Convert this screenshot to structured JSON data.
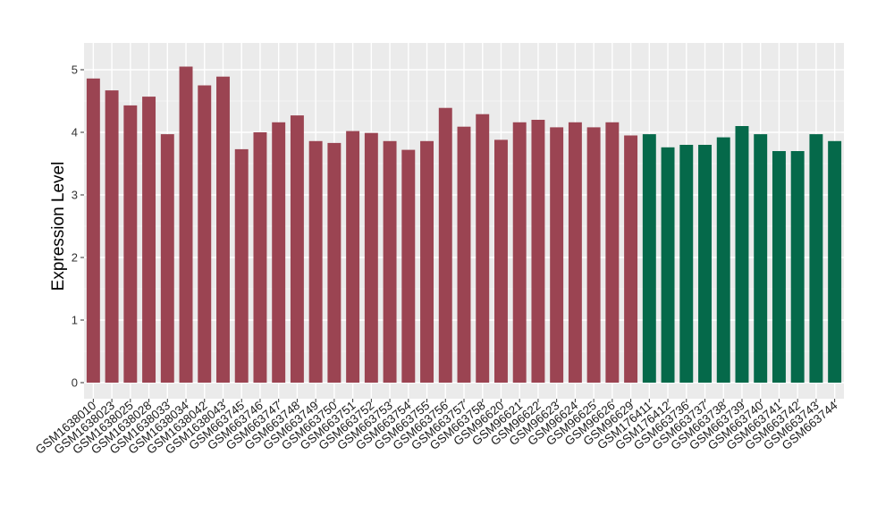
{
  "chart_data": {
    "type": "bar",
    "ylabel": "Expression Level",
    "xlabel": "",
    "ylim": [
      0,
      5.2
    ],
    "yticks": [
      0,
      1,
      2,
      3,
      4,
      5
    ],
    "grid": true,
    "background": "#ebebeb",
    "colors": {
      "group1": "#9b4452",
      "group2": "#05694a"
    },
    "categories": [
      "GSM1638010",
      "GSM1638023",
      "GSM1638025",
      "GSM1638028",
      "GSM1638033",
      "GSM1638034",
      "GSM1638042",
      "GSM1638043",
      "GSM663745",
      "GSM663746",
      "GSM663747",
      "GSM663748",
      "GSM663749",
      "GSM663750",
      "GSM663751",
      "GSM663752",
      "GSM663753",
      "GSM663754",
      "GSM663755",
      "GSM663756",
      "GSM663757",
      "GSM663758",
      "GSM96620",
      "GSM96621",
      "GSM96622",
      "GSM96623",
      "GSM96624",
      "GSM96625",
      "GSM96626",
      "GSM96629",
      "GSM176411",
      "GSM176412",
      "GSM663736",
      "GSM663737",
      "GSM663738",
      "GSM663739",
      "GSM663740",
      "GSM663741",
      "GSM663742",
      "GSM663743",
      "GSM663744"
    ],
    "values": [
      4.86,
      4.67,
      4.43,
      4.57,
      3.97,
      5.05,
      4.75,
      4.89,
      3.73,
      4.0,
      4.16,
      4.27,
      3.86,
      3.83,
      4.02,
      3.99,
      3.86,
      3.72,
      3.86,
      4.39,
      4.09,
      4.29,
      3.88,
      4.16,
      4.2,
      4.08,
      4.16,
      4.08,
      4.16,
      3.95,
      3.97,
      3.76,
      3.8,
      3.8,
      3.92,
      4.1,
      3.97,
      3.7,
      3.7,
      3.97,
      3.86
    ],
    "groups": [
      "group1",
      "group1",
      "group1",
      "group1",
      "group1",
      "group1",
      "group1",
      "group1",
      "group1",
      "group1",
      "group1",
      "group1",
      "group1",
      "group1",
      "group1",
      "group1",
      "group1",
      "group1",
      "group1",
      "group1",
      "group1",
      "group1",
      "group1",
      "group1",
      "group1",
      "group1",
      "group1",
      "group1",
      "group1",
      "group1",
      "group2",
      "group2",
      "group2",
      "group2",
      "group2",
      "group2",
      "group2",
      "group2",
      "group2",
      "group2",
      "group2"
    ]
  }
}
